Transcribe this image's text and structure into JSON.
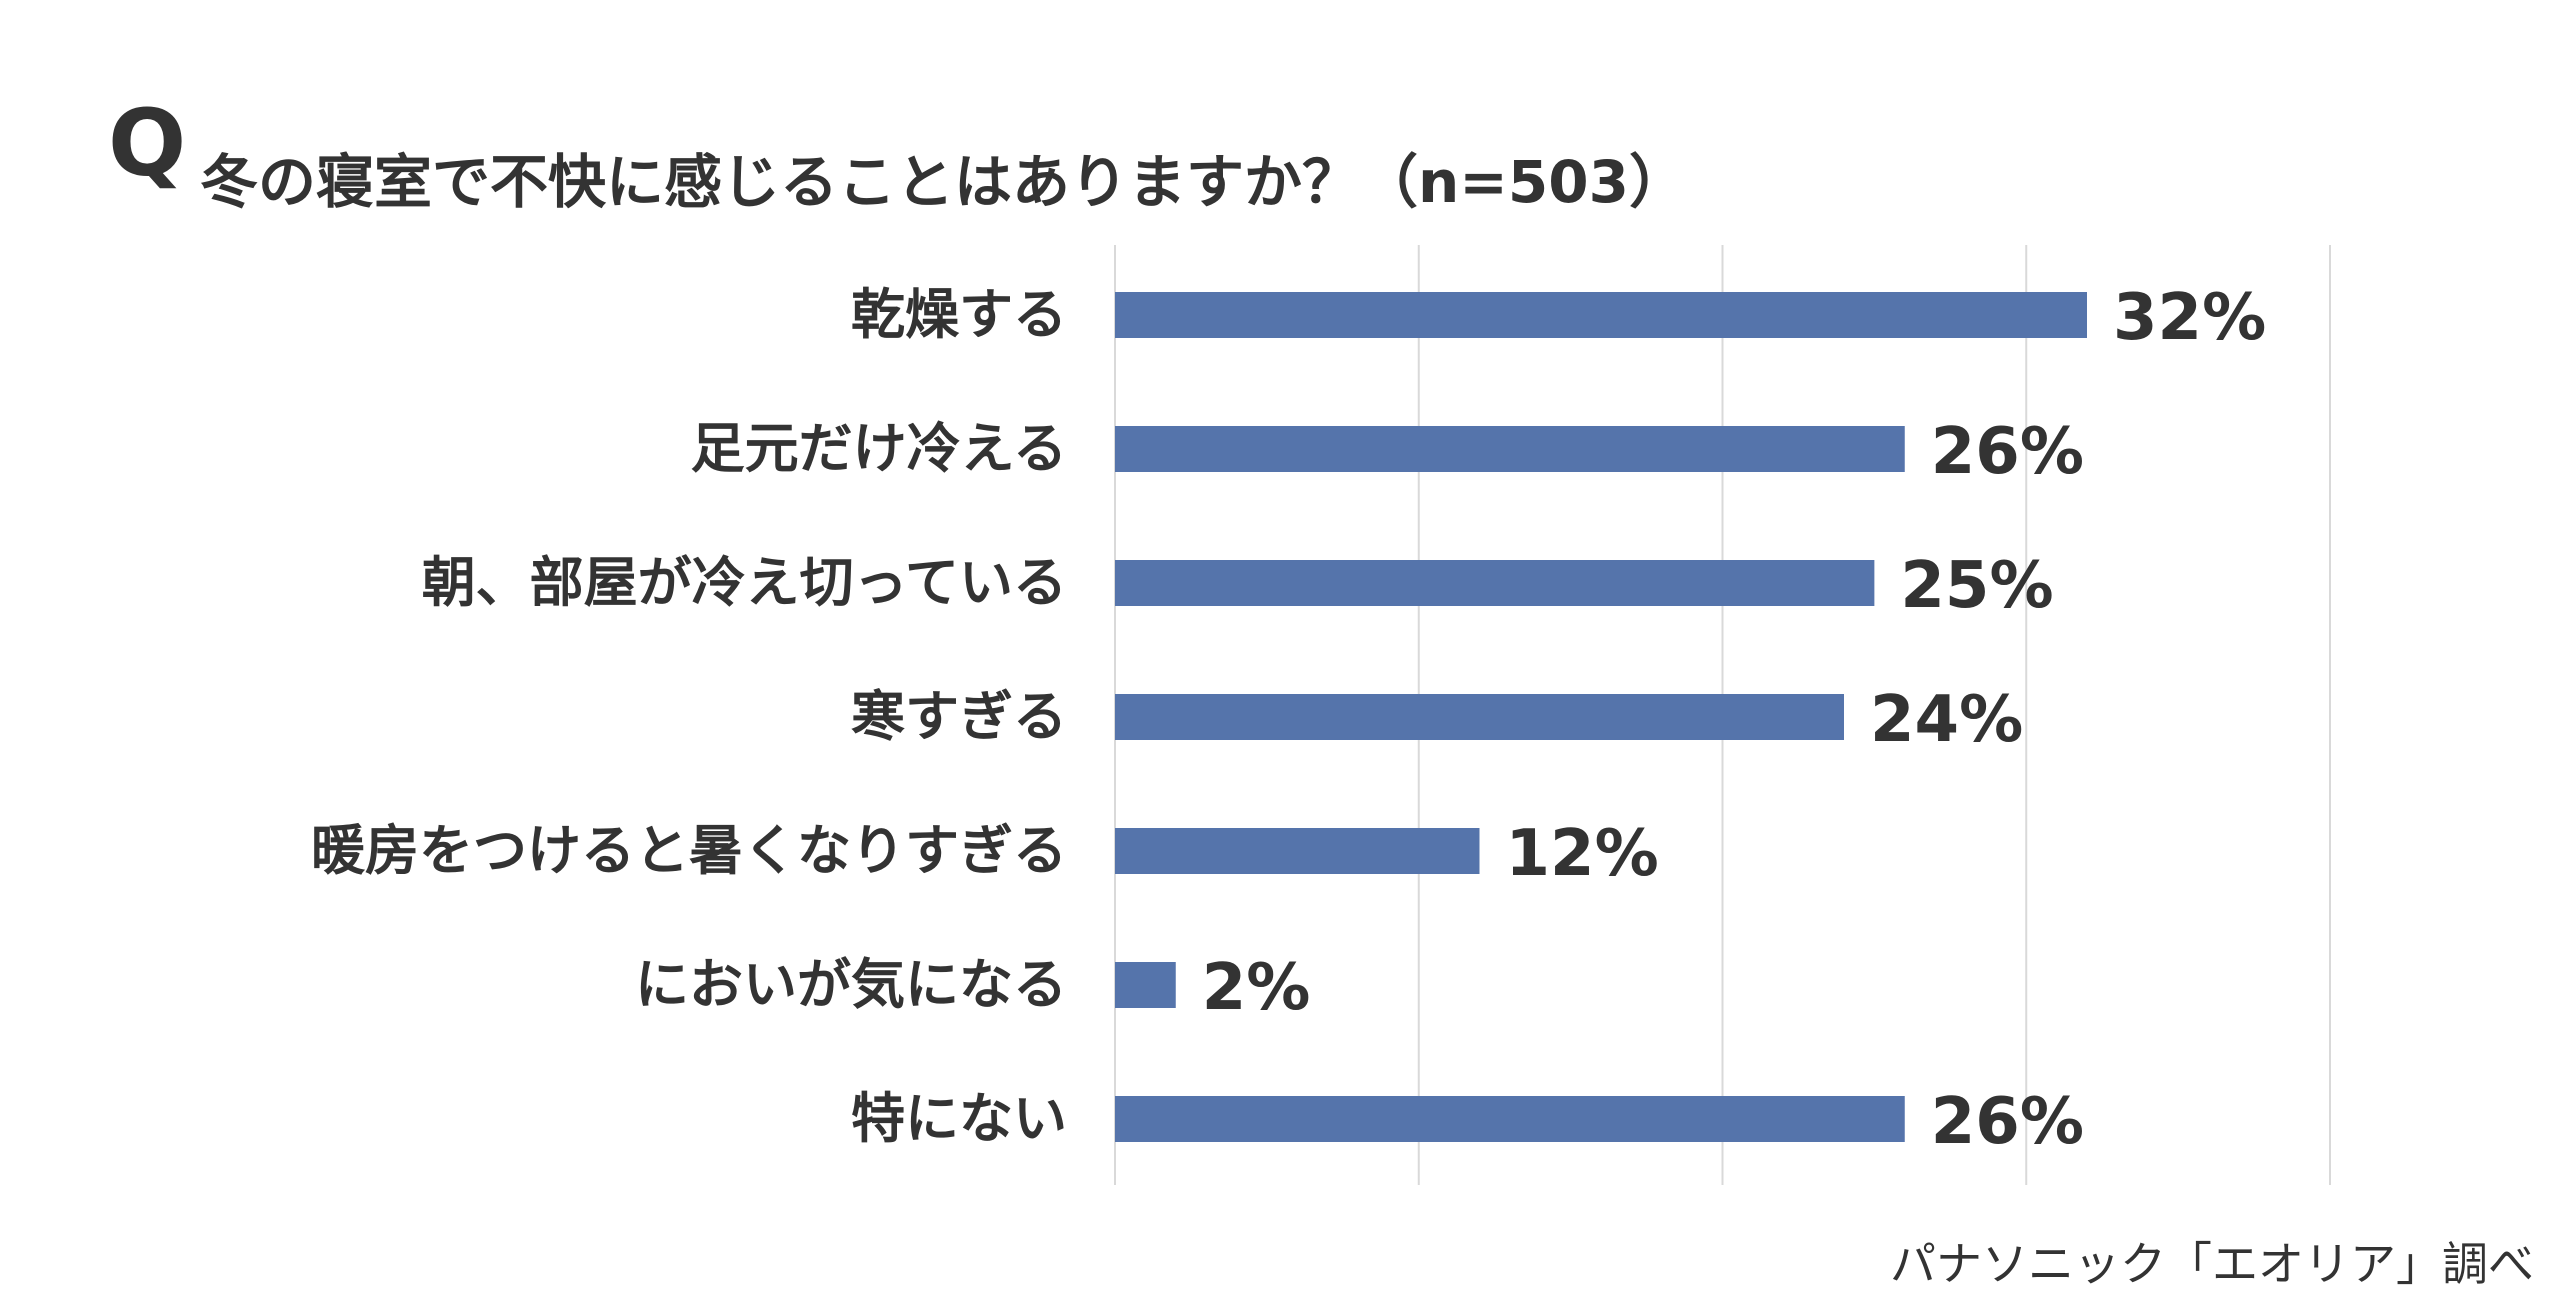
{
  "header": {
    "q_mark": "Q",
    "title": "冬の寝室で不快に感じることはありますか？（n=503）"
  },
  "chart_data": {
    "type": "bar",
    "orientation": "horizontal",
    "categories": [
      "乾燥する",
      "足元だけ冷える",
      "朝、部屋が冷え切っている",
      "寒すぎる",
      "暖房をつけると暑くなりすぎる",
      "においが気になる",
      "特にない"
    ],
    "values": [
      32,
      26,
      25,
      24,
      12,
      2,
      26
    ],
    "value_labels": [
      "32%",
      "26%",
      "25%",
      "24%",
      "12%",
      "2%",
      "26%"
    ],
    "xlim": [
      0,
      40
    ],
    "grid": true,
    "bar_color": "#5574ab",
    "grid_color": "#d9d9d9"
  },
  "footer": {
    "source": "パナソニック「エオリア」調べ"
  }
}
